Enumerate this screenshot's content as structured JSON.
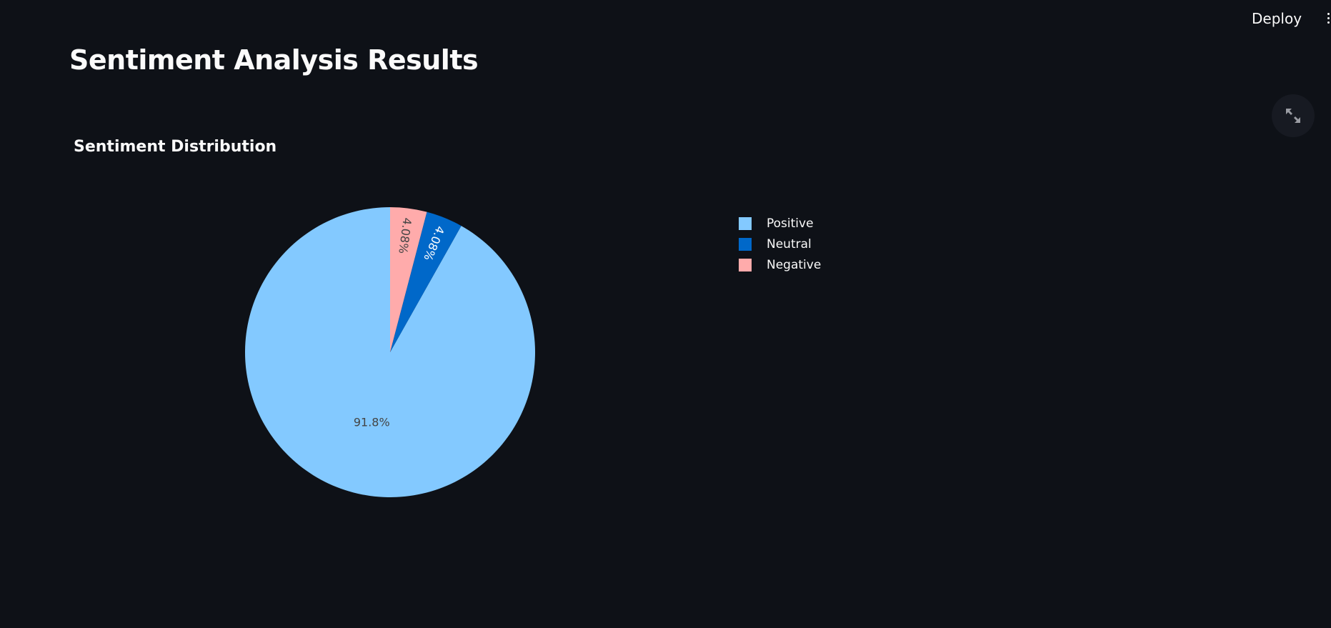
{
  "header": {
    "deploy_label": "Deploy",
    "menu_icon": "vertical-dots-icon"
  },
  "page": {
    "title": "Sentiment Analysis Results",
    "fullscreen_icon": "expand-icon"
  },
  "chart_data": {
    "type": "pie",
    "title": "Sentiment Distribution",
    "slices": [
      {
        "name": "Positive",
        "value": 91.8,
        "label": "91.8%",
        "color": "#83c9ff",
        "label_color": "#444444"
      },
      {
        "name": "Neutral",
        "value": 4.08,
        "label": "4.08%",
        "color": "#0068c9",
        "label_color": "#ffffff"
      },
      {
        "name": "Negative",
        "value": 4.08,
        "label": "4.08%",
        "color": "#ffabab",
        "label_color": "#444444"
      }
    ],
    "direction": "counterclockwise-from-top",
    "legend_placement": "right"
  },
  "colors": {
    "background": "#0e1117",
    "text": "#fafafa"
  }
}
